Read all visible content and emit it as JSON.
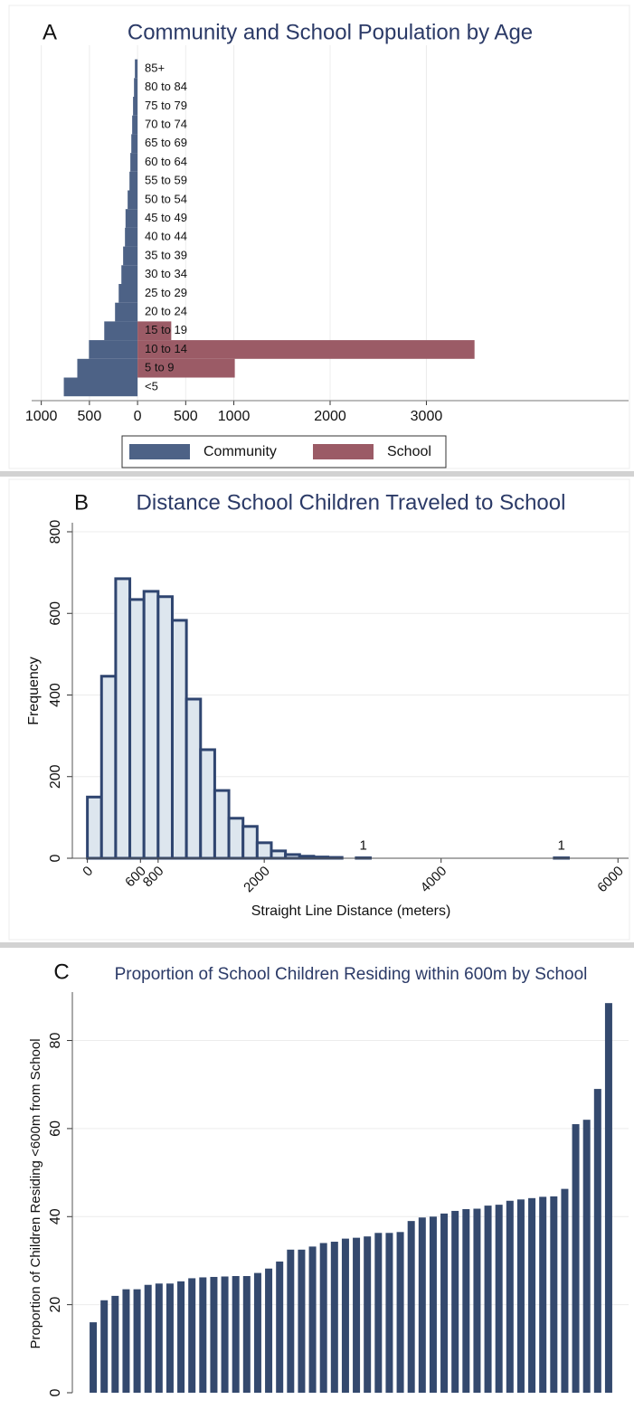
{
  "chart_data": [
    {
      "type": "pyramid",
      "panel_label": "A",
      "title": "Community and School Population by Age",
      "categories": [
        "<5",
        "5 to 9",
        "10 to 14",
        "15 to 19",
        "20 to 24",
        "25 to 29",
        "30 to 34",
        "35 to 39",
        "40 to 44",
        "45 to 49",
        "50 to 54",
        "55 to 59",
        "60 to 64",
        "65 to 69",
        "70 to 74",
        "75 to 79",
        "80 to 84",
        "85+"
      ],
      "series": [
        {
          "name": "Community",
          "color": "#4d6286",
          "values": [
            -766,
            -626,
            -505,
            -346,
            -234,
            -196,
            -168,
            -150,
            -131,
            -125,
            -103,
            -84,
            -75,
            -65,
            -56,
            -47,
            -37,
            -28
          ]
        },
        {
          "name": "School",
          "color": "#9b5b66",
          "values": [
            0,
            1010,
            3500,
            350,
            0,
            0,
            0,
            0,
            0,
            0,
            0,
            0,
            0,
            0,
            0,
            0,
            0,
            0
          ]
        }
      ],
      "xlim": [
        -1100,
        5100
      ],
      "xticks": [
        {
          "value": -1000,
          "label": "1000"
        },
        {
          "value": -500,
          "label": "500"
        },
        0,
        500,
        1000,
        2000,
        3000
      ],
      "grid": true,
      "legend": "bottom"
    },
    {
      "type": "histogram",
      "panel_label": "B",
      "title": "Distance School Children Traveled to School",
      "xlabel": "Straight Line Distance (meters)",
      "ylabel": "Frequency",
      "bins": [
        0,
        160,
        320,
        480,
        640,
        800,
        960,
        1120,
        1280,
        1440,
        1600,
        1760,
        1920,
        2080,
        2240,
        2400,
        2560,
        2720,
        2880,
        3040,
        3200,
        3360,
        3520,
        3680,
        3840,
        4000,
        4160,
        4320,
        4480,
        4640,
        4800,
        4960,
        5120,
        5280,
        5440
      ],
      "values": [
        150,
        446,
        685,
        634,
        654,
        641,
        583,
        390,
        266,
        166,
        98,
        78,
        38,
        18,
        9,
        5,
        3,
        2,
        0,
        1,
        0,
        0,
        0,
        0,
        0,
        0,
        0,
        0,
        0,
        0,
        0,
        0,
        0,
        1
      ],
      "color": "#dde6ee",
      "edgecolor": "#2f4570",
      "xlim": [
        -170,
        6120
      ],
      "xticks": [
        0,
        600,
        800,
        2000,
        4000,
        6000
      ],
      "ylim": [
        0,
        800
      ],
      "yticks": [
        0,
        200,
        400,
        600,
        800
      ],
      "grid": true
    },
    {
      "type": "bar",
      "panel_label": "C",
      "title": "Proportion of School Children Residing within 600m by School",
      "ylabel": "Proportion of Children Residing <600m from School",
      "values": [
        16,
        21,
        22,
        23.5,
        23.5,
        24.5,
        24.8,
        24.8,
        25.3,
        26,
        26.2,
        26.3,
        26.4,
        26.5,
        26.5,
        27.2,
        28.2,
        29.8,
        32.5,
        32.5,
        33.2,
        34,
        34.3,
        35,
        35.2,
        35.5,
        36.3,
        36.3,
        36.5,
        39,
        39.8,
        40,
        40.7,
        41.3,
        41.7,
        41.8,
        42.5,
        42.7,
        43.6,
        43.9,
        44.2,
        44.5,
        44.6,
        46.3,
        61,
        62,
        69,
        88.5
      ],
      "color": "#34496e",
      "ylim": [
        0,
        91
      ],
      "yticks": [
        0,
        20,
        40,
        60,
        80
      ],
      "grid": true
    }
  ]
}
